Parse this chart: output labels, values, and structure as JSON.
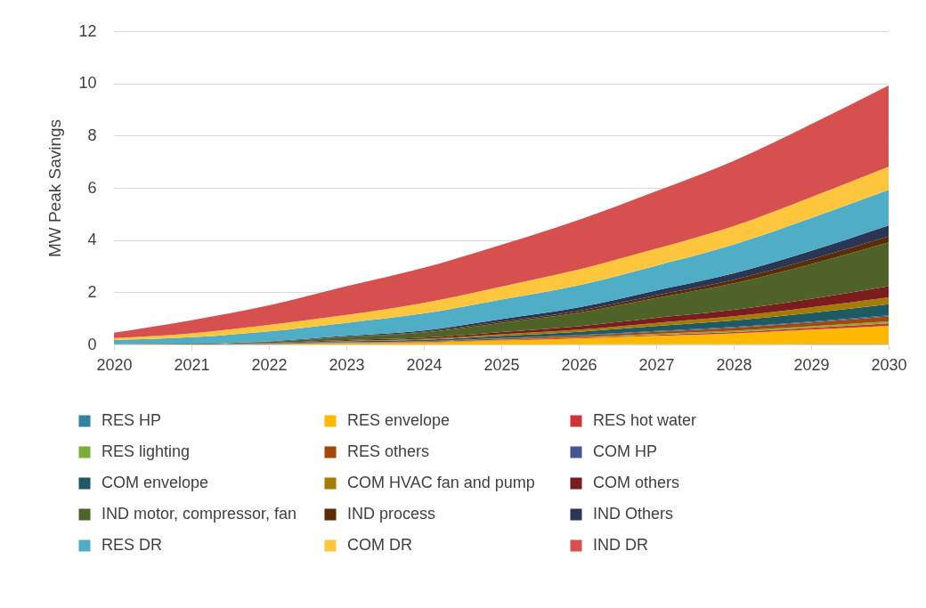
{
  "chart_data": {
    "type": "area",
    "stacked": true,
    "ylabel": "MW Peak Savings",
    "x": [
      2020,
      2021,
      2022,
      2023,
      2024,
      2025,
      2026,
      2027,
      2028,
      2029,
      2030
    ],
    "xlim": [
      2020,
      2030
    ],
    "xticks": [
      2020,
      2021,
      2022,
      2023,
      2024,
      2025,
      2026,
      2027,
      2028,
      2029,
      2030
    ],
    "ylim": [
      0,
      12
    ],
    "yticks": [
      0,
      2,
      4,
      6,
      8,
      10,
      12
    ],
    "grid": "y",
    "legend": "bottom",
    "series": [
      {
        "name": "RES HP",
        "color": "#31849b",
        "values": [
          0,
          0,
          0,
          0,
          0,
          0,
          0.01,
          0.01,
          0.01,
          0.02,
          0.02
        ]
      },
      {
        "name": "RES envelope",
        "color": "#ffb900",
        "values": [
          0.01,
          0.01,
          0.02,
          0.05,
          0.08,
          0.15,
          0.22,
          0.32,
          0.42,
          0.55,
          0.7
        ]
      },
      {
        "name": "RES hot water",
        "color": "#d13438",
        "values": [
          0,
          0,
          0,
          0.01,
          0.01,
          0.02,
          0.03,
          0.04,
          0.05,
          0.07,
          0.09
        ]
      },
      {
        "name": "RES lighting",
        "color": "#7cac3a",
        "values": [
          0,
          0,
          0,
          0.01,
          0.01,
          0.02,
          0.02,
          0.04,
          0.05,
          0.06,
          0.08
        ]
      },
      {
        "name": "RES others",
        "color": "#a5460b",
        "values": [
          0,
          0,
          0,
          0.01,
          0.02,
          0.04,
          0.06,
          0.08,
          0.11,
          0.14,
          0.18
        ]
      },
      {
        "name": "COM HP",
        "color": "#46578f",
        "values": [
          0,
          0,
          0.01,
          0.01,
          0.01,
          0.02,
          0.02,
          0.03,
          0.03,
          0.04,
          0.05
        ]
      },
      {
        "name": "COM envelope",
        "color": "#1e5a64",
        "values": [
          0,
          0,
          0.01,
          0.03,
          0.05,
          0.08,
          0.13,
          0.19,
          0.25,
          0.33,
          0.42
        ]
      },
      {
        "name": "COM HVAC fan and pump",
        "color": "#a67c00",
        "values": [
          0,
          0,
          0.01,
          0.02,
          0.03,
          0.06,
          0.08,
          0.12,
          0.16,
          0.21,
          0.27
        ]
      },
      {
        "name": "COM others",
        "color": "#7b1c1f",
        "values": [
          0,
          0,
          0.01,
          0.03,
          0.05,
          0.09,
          0.13,
          0.19,
          0.25,
          0.33,
          0.42
        ]
      },
      {
        "name": "IND motor, compressor, fan",
        "color": "#4f6228",
        "values": [
          0.01,
          0.02,
          0.04,
          0.11,
          0.2,
          0.35,
          0.52,
          0.76,
          1.01,
          1.33,
          1.68
        ]
      },
      {
        "name": "IND process",
        "color": "#5b2c06",
        "values": [
          0,
          0,
          0.01,
          0.02,
          0.03,
          0.05,
          0.07,
          0.1,
          0.14,
          0.18,
          0.23
        ]
      },
      {
        "name": "IND Others",
        "color": "#2b3654",
        "values": [
          0,
          0,
          0.01,
          0.03,
          0.05,
          0.09,
          0.13,
          0.19,
          0.25,
          0.33,
          0.42
        ]
      },
      {
        "name": "RES DR",
        "color": "#4fadc6",
        "values": [
          0.15,
          0.25,
          0.38,
          0.5,
          0.65,
          0.75,
          0.85,
          0.95,
          1.1,
          1.25,
          1.36
        ]
      },
      {
        "name": "COM DR",
        "color": "#fec63d",
        "values": [
          0.08,
          0.15,
          0.25,
          0.3,
          0.4,
          0.5,
          0.6,
          0.65,
          0.7,
          0.8,
          0.89
        ]
      },
      {
        "name": "IND DR",
        "color": "#d65050",
        "values": [
          0.2,
          0.5,
          0.75,
          1.1,
          1.35,
          1.6,
          1.9,
          2.2,
          2.5,
          2.8,
          3.11
        ]
      }
    ]
  }
}
